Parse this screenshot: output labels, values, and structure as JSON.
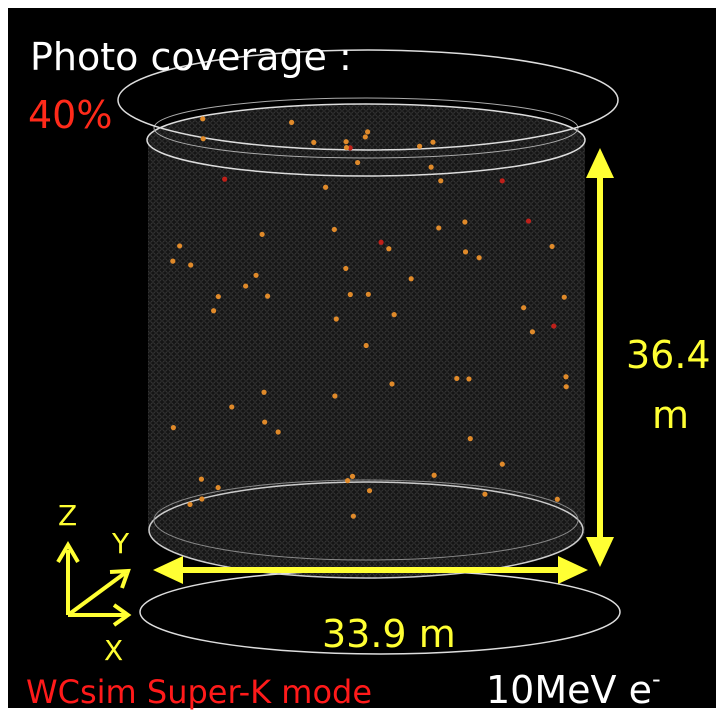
{
  "title": "Photo coverage :",
  "coverage": "40%",
  "height": {
    "value": "36.4",
    "unit": "m"
  },
  "diameter": "33.9 m",
  "axes": {
    "z": "Z",
    "y": "Y",
    "x": "X"
  },
  "mode": "WCsim Super-K mode",
  "particle": {
    "text": "10MeV e",
    "charge": "-"
  }
}
